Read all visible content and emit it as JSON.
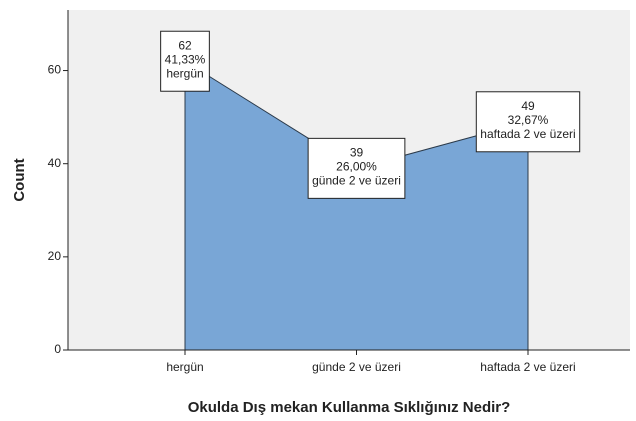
{
  "chart_data": {
    "type": "area",
    "x_label": "Okulda Dış mekan Kullanma Sıklığınız Nedir?",
    "y_label": "Count",
    "categories": [
      "hergün",
      "günde 2 ve üzeri",
      "haftada 2 ve üzeri"
    ],
    "values": [
      62,
      39,
      49
    ],
    "percent_labels": [
      "41,33%",
      "26,00%",
      "32,67%"
    ],
    "color": "#79a6d6",
    "ylim": [
      0,
      73
    ],
    "yticks": [
      0,
      20,
      40,
      60
    ]
  }
}
